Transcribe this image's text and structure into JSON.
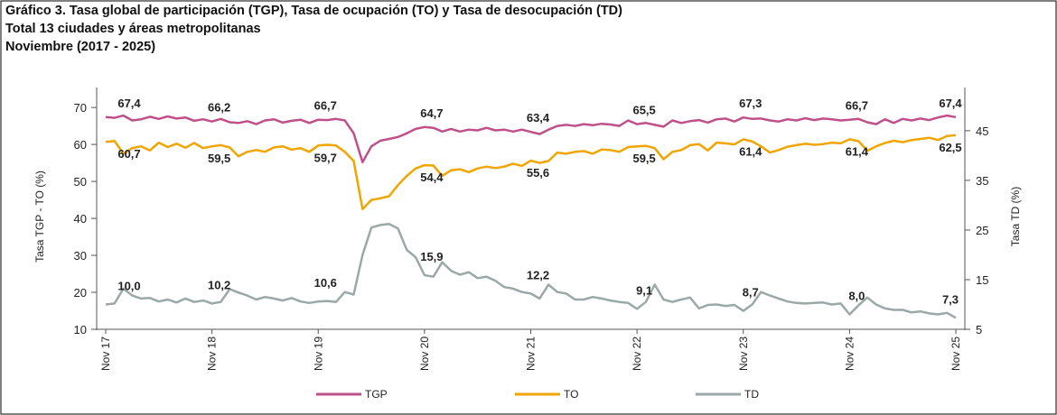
{
  "chart_data": {
    "type": "line",
    "title": "Gráfico 3. Tasa global de participación (TGP), Tasa de ocupación (TO) y Tasa de desocupación (TD)",
    "subtitle": [
      "Total 13 ciudades y áreas metropolitanas",
      "Noviembre (2017 - 2025)"
    ],
    "ylabel": "Tasa TGP - TO (%)",
    "y2label": "Tasa TD (%)",
    "categories": [
      "Nov 17",
      null,
      null,
      null,
      null,
      null,
      null,
      null,
      null,
      null,
      null,
      null,
      "Nov 18",
      null,
      null,
      null,
      null,
      null,
      null,
      null,
      null,
      null,
      null,
      null,
      "Nov 19",
      null,
      null,
      null,
      null,
      null,
      null,
      null,
      null,
      null,
      null,
      null,
      "Nov 20",
      null,
      null,
      null,
      null,
      null,
      null,
      null,
      null,
      null,
      null,
      null,
      "Nov 21",
      null,
      null,
      null,
      null,
      null,
      null,
      null,
      null,
      null,
      null,
      null,
      "Nov 22",
      null,
      null,
      null,
      null,
      null,
      null,
      null,
      null,
      null,
      null,
      null,
      "Nov 23",
      null,
      null,
      null,
      null,
      null,
      null,
      null,
      null,
      null,
      null,
      null,
      "Nov 24",
      null,
      null,
      null,
      null,
      null,
      null,
      null,
      null,
      null,
      null,
      null,
      "Nov 25"
    ],
    "ylim": [
      10,
      75.4
    ],
    "yticks": [
      10,
      20,
      30,
      40,
      50,
      60,
      70
    ],
    "y2lim": [
      5,
      53.7
    ],
    "y2ticks": [
      5,
      15,
      25,
      35,
      45
    ],
    "series": [
      {
        "name": "TGP",
        "color": "#c0508a",
        "values": [
          67.4,
          67.2,
          67.8,
          66.5,
          66.8,
          67.5,
          66.9,
          67.6,
          67.0,
          67.3,
          66.4,
          66.8,
          66.2,
          66.9,
          66.0,
          65.8,
          66.3,
          65.5,
          66.5,
          66.8,
          65.9,
          66.4,
          66.7,
          65.8,
          66.7,
          66.6,
          66.9,
          66.5,
          63.0,
          55.2,
          59.5,
          61.0,
          61.5,
          62.0,
          63.0,
          64.2,
          64.7,
          64.5,
          63.5,
          64.2,
          63.5,
          64.0,
          63.8,
          64.5,
          63.8,
          64.0,
          63.5,
          64.0,
          63.4,
          62.8,
          64.0,
          65.0,
          65.3,
          65.0,
          65.5,
          65.2,
          65.6,
          65.4,
          65.0,
          66.5,
          65.5,
          65.8,
          65.3,
          64.8,
          66.5,
          65.8,
          66.3,
          66.6,
          65.9,
          66.8,
          67.0,
          66.2,
          67.3,
          66.9,
          67.0,
          66.5,
          66.2,
          66.8,
          66.5,
          67.1,
          66.6,
          67.0,
          66.8,
          66.5,
          66.7,
          66.9,
          66.0,
          65.5,
          66.8,
          65.8,
          66.9,
          66.5,
          67.0,
          66.6,
          67.3,
          67.8,
          67.4
        ],
        "value_labels": [
          "67,4",
          null,
          null,
          null,
          null,
          null,
          null,
          null,
          null,
          null,
          null,
          null,
          "66,2",
          null,
          null,
          null,
          null,
          null,
          null,
          null,
          null,
          null,
          null,
          null,
          "66,7",
          null,
          null,
          null,
          null,
          null,
          null,
          null,
          null,
          null,
          null,
          null,
          "64,7",
          null,
          null,
          null,
          null,
          null,
          null,
          null,
          null,
          null,
          null,
          null,
          "63,4",
          null,
          null,
          null,
          null,
          null,
          null,
          null,
          null,
          null,
          null,
          null,
          "65,5",
          null,
          null,
          null,
          null,
          null,
          null,
          null,
          null,
          null,
          null,
          null,
          "67,3",
          null,
          null,
          null,
          null,
          null,
          null,
          null,
          null,
          null,
          null,
          null,
          "66,7",
          null,
          null,
          null,
          null,
          null,
          null,
          null,
          null,
          null,
          null,
          null,
          "67,4"
        ]
      },
      {
        "name": "TO",
        "color": "#f0a500",
        "values": [
          60.7,
          60.9,
          57.5,
          59.0,
          59.5,
          58.4,
          60.5,
          59.3,
          60.2,
          59.1,
          60.4,
          59.0,
          59.5,
          59.8,
          59.2,
          56.8,
          58.0,
          58.5,
          58.0,
          59.2,
          59.5,
          58.6,
          59.0,
          58.0,
          59.7,
          59.9,
          59.7,
          58.0,
          55.5,
          42.5,
          45.0,
          45.4,
          46.0,
          49.0,
          51.5,
          53.5,
          54.4,
          54.3,
          51.5,
          53.0,
          53.3,
          52.5,
          53.5,
          54.0,
          53.6,
          54.0,
          54.8,
          54.2,
          55.6,
          55.0,
          55.5,
          57.8,
          57.5,
          58.0,
          58.2,
          57.5,
          58.6,
          58.5,
          58.0,
          59.3,
          59.5,
          59.6,
          59.0,
          56.0,
          58.0,
          58.5,
          59.8,
          60.1,
          58.4,
          60.5,
          60.3,
          60.0,
          61.4,
          60.8,
          59.5,
          57.8,
          58.5,
          59.4,
          59.8,
          60.2,
          59.9,
          60.1,
          60.5,
          60.3,
          61.4,
          60.9,
          58.3,
          59.5,
          60.4,
          61.0,
          60.6,
          61.2,
          61.5,
          61.8,
          61.2,
          62.3,
          62.5
        ],
        "value_labels": [
          "60,7",
          null,
          null,
          null,
          null,
          null,
          null,
          null,
          null,
          null,
          null,
          null,
          "59,5",
          null,
          null,
          null,
          null,
          null,
          null,
          null,
          null,
          null,
          null,
          null,
          "59,7",
          null,
          null,
          null,
          null,
          null,
          null,
          null,
          null,
          null,
          null,
          null,
          "54,4",
          null,
          null,
          null,
          null,
          null,
          null,
          null,
          null,
          null,
          null,
          null,
          "55,6",
          null,
          null,
          null,
          null,
          null,
          null,
          null,
          null,
          null,
          null,
          null,
          "59,5",
          null,
          null,
          null,
          null,
          null,
          null,
          null,
          null,
          null,
          null,
          null,
          "61,4",
          null,
          null,
          null,
          null,
          null,
          null,
          null,
          null,
          null,
          null,
          null,
          "61,4",
          null,
          null,
          null,
          null,
          null,
          null,
          null,
          null,
          null,
          null,
          null,
          "62,5"
        ]
      },
      {
        "name": "TD",
        "color": "#9aa9a8",
        "axis": "y2",
        "values": [
          10.0,
          10.2,
          13.2,
          11.8,
          11.2,
          11.3,
          10.6,
          11.0,
          10.4,
          11.2,
          10.5,
          10.8,
          10.2,
          10.5,
          13.1,
          12.4,
          11.8,
          11.0,
          11.5,
          11.2,
          10.8,
          11.3,
          10.6,
          10.3,
          10.6,
          10.7,
          10.5,
          12.5,
          12.0,
          20.0,
          25.5,
          26.0,
          26.2,
          25.3,
          21.0,
          19.5,
          15.9,
          15.6,
          18.5,
          16.8,
          16.0,
          16.5,
          15.3,
          15.6,
          14.8,
          13.5,
          13.2,
          12.5,
          12.2,
          11.2,
          14.0,
          12.5,
          12.2,
          11.0,
          11.0,
          11.5,
          11.2,
          10.8,
          10.5,
          10.3,
          9.1,
          10.5,
          14.0,
          11.0,
          10.5,
          11.0,
          11.4,
          9.2,
          9.9,
          10.0,
          9.7,
          9.9,
          8.7,
          10.0,
          12.5,
          11.8,
          11.2,
          10.6,
          10.3,
          10.2,
          10.3,
          10.4,
          10.0,
          10.2,
          8.0,
          9.8,
          11.4,
          10.0,
          9.2,
          8.9,
          8.9,
          8.4,
          8.6,
          8.2,
          8.0,
          8.3,
          7.3
        ],
        "value_labels": [
          "10,0",
          null,
          null,
          null,
          null,
          null,
          null,
          null,
          null,
          null,
          null,
          null,
          "10,2",
          null,
          null,
          null,
          null,
          null,
          null,
          null,
          null,
          null,
          null,
          null,
          "10,6",
          null,
          null,
          null,
          null,
          null,
          null,
          null,
          null,
          null,
          null,
          null,
          "15,9",
          null,
          null,
          null,
          null,
          null,
          null,
          null,
          null,
          null,
          null,
          null,
          "12,2",
          null,
          null,
          null,
          null,
          null,
          null,
          null,
          null,
          null,
          null,
          null,
          "9,1",
          null,
          null,
          null,
          null,
          null,
          null,
          null,
          null,
          null,
          null,
          null,
          "8,7",
          null,
          null,
          null,
          null,
          null,
          null,
          null,
          null,
          null,
          null,
          null,
          "8,0",
          null,
          null,
          null,
          null,
          null,
          null,
          null,
          null,
          null,
          null,
          null,
          "7,3"
        ]
      }
    ]
  }
}
